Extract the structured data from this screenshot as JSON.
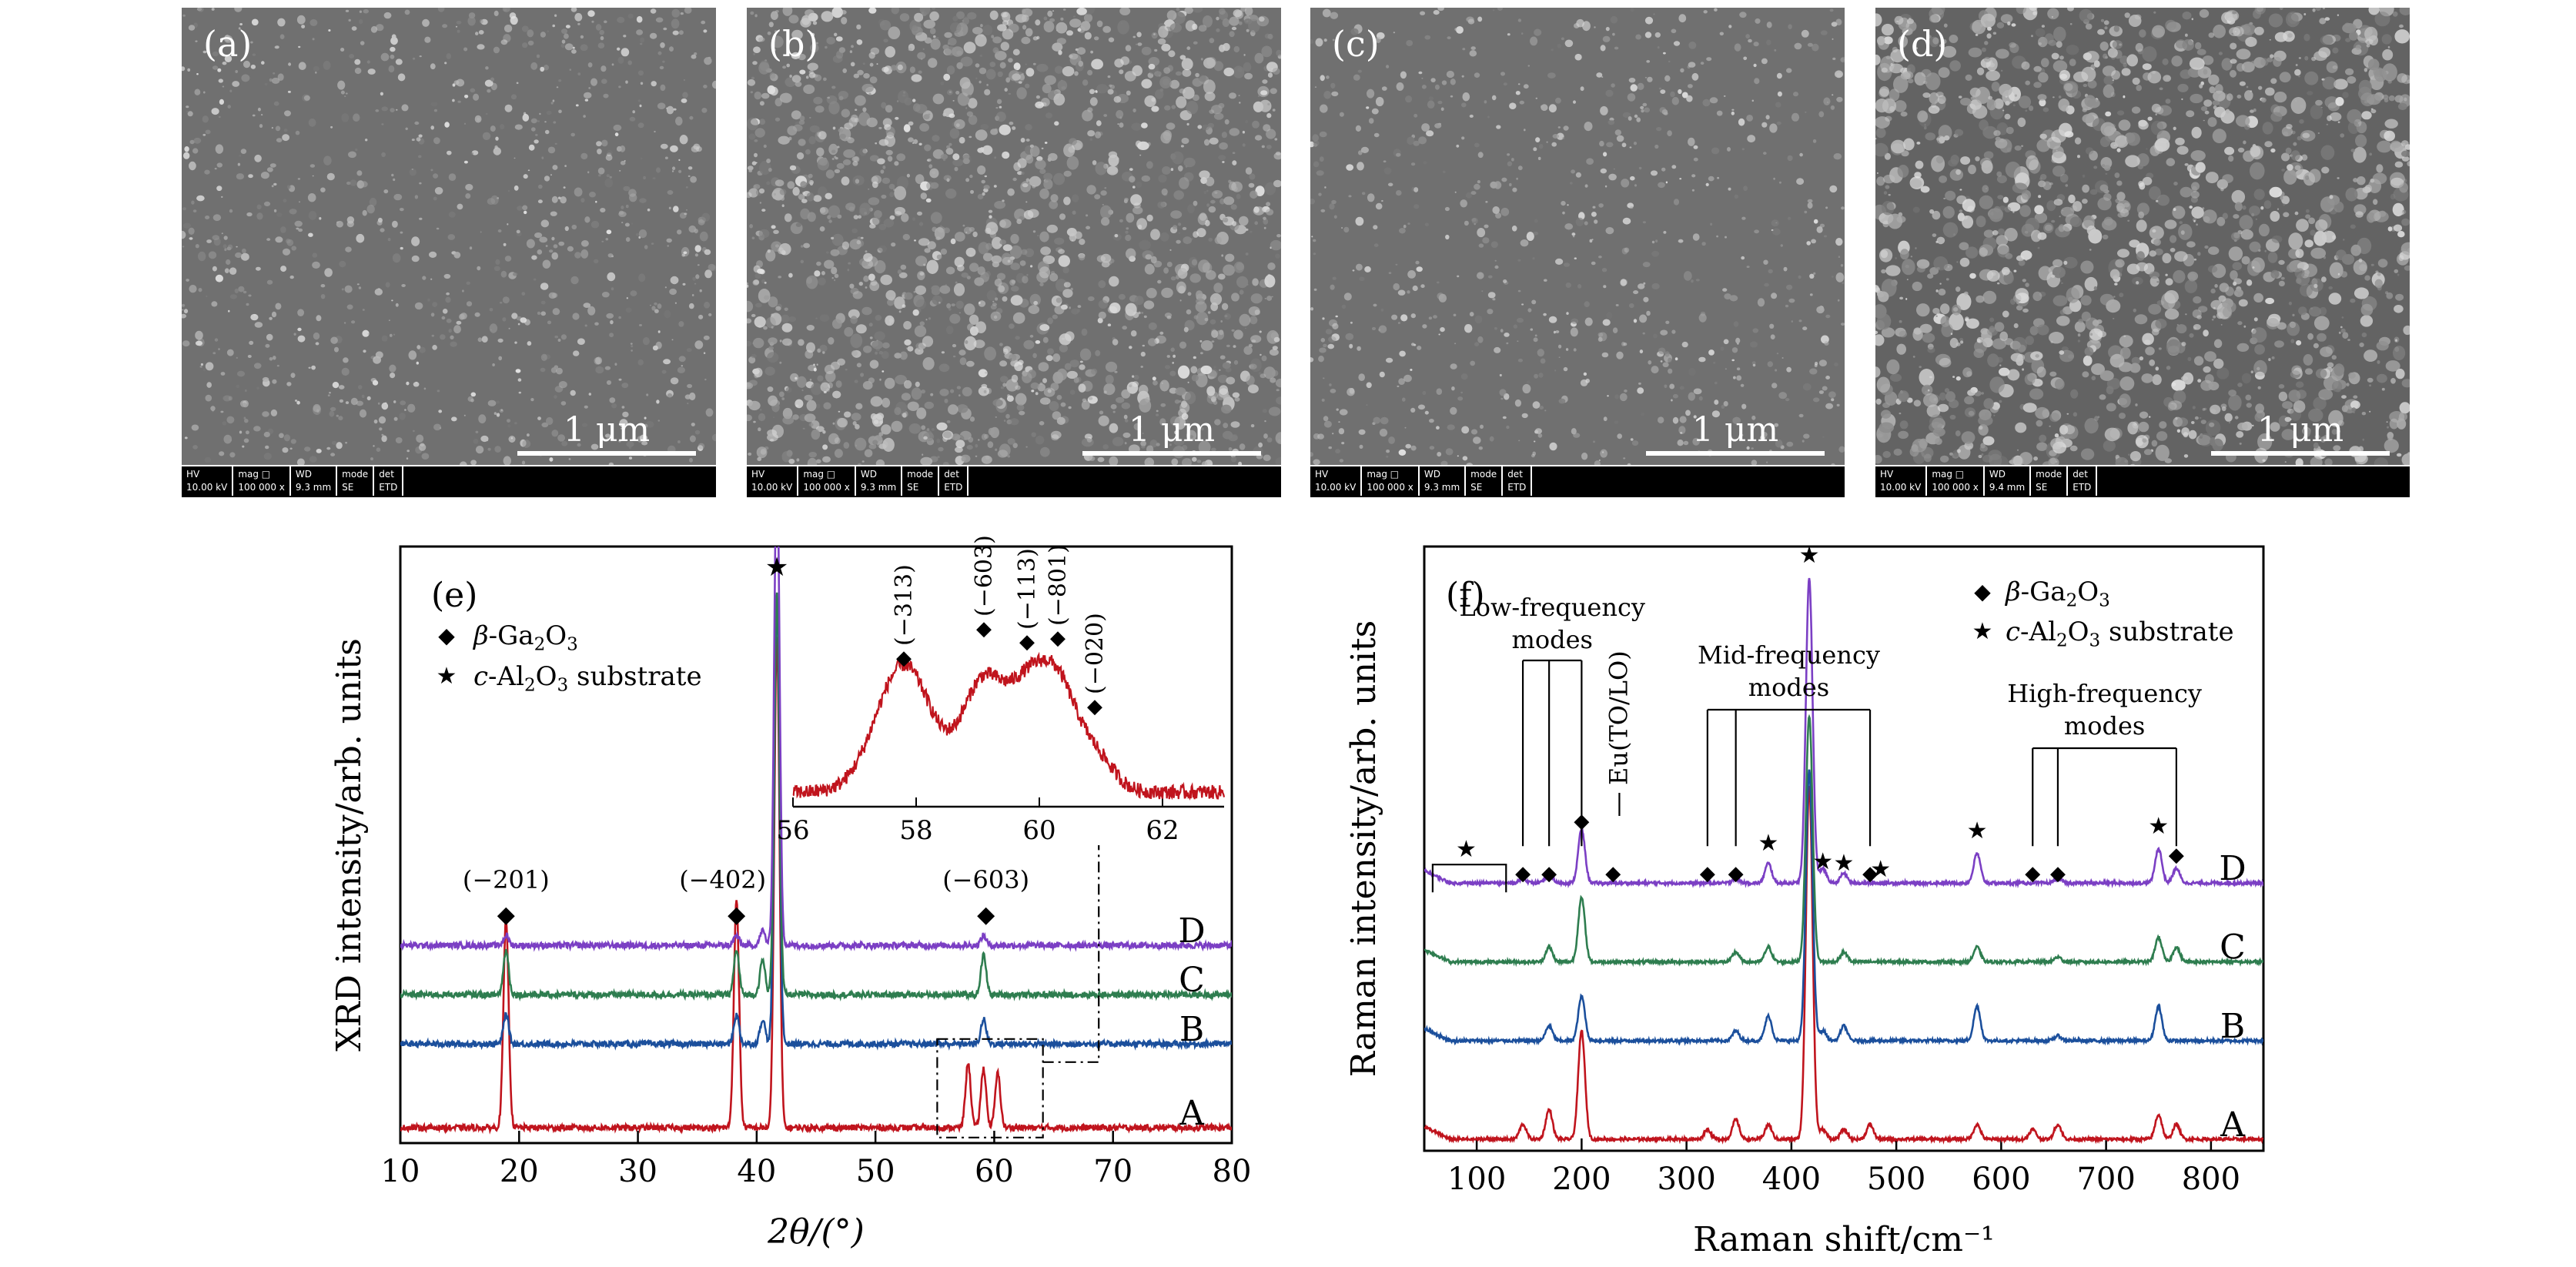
{
  "sem_panels": [
    {
      "label": "(a)",
      "scale_bar": "1 μm",
      "info": {
        "headers": [
          "HV",
          "mag □",
          "WD",
          "mode",
          "det"
        ],
        "values": [
          "10.00 kV",
          "100 000 x",
          "9.3 mm",
          "SE",
          "ETD"
        ]
      }
    },
    {
      "label": "(b)",
      "scale_bar": "1 μm",
      "info": {
        "headers": [
          "HV",
          "mag □",
          "WD",
          "mode",
          "det"
        ],
        "values": [
          "10.00 kV",
          "100 000 x",
          "9.3 mm",
          "SE",
          "ETD"
        ]
      }
    },
    {
      "label": "(c)",
      "scale_bar": "1 μm",
      "info": {
        "headers": [
          "HV",
          "mag □",
          "WD",
          "mode",
          "det"
        ],
        "values": [
          "10.00 kV",
          "100 000 x",
          "9.3 mm",
          "SE",
          "ETD"
        ]
      }
    },
    {
      "label": "(d)",
      "scale_bar": "1 μm",
      "info": {
        "headers": [
          "HV",
          "mag □",
          "WD",
          "mode",
          "det"
        ],
        "values": [
          "10.00 kV",
          "100 000 x",
          "9.4 mm",
          "SE",
          "ETD"
        ]
      }
    }
  ],
  "chart_data": [
    {
      "type": "line",
      "panel_label": "(e)",
      "xlabel": "2θ/(°)",
      "ylabel": "XRD intensity/arb. units",
      "xlim": [
        10,
        80
      ],
      "xticks": [
        10,
        20,
        30,
        40,
        50,
        60,
        70,
        80
      ],
      "legend": [
        {
          "marker": "◆",
          "text": "β-Ga2O3"
        },
        {
          "marker": "★",
          "text": "c-Al2O3 substrate"
        }
      ],
      "series": [
        {
          "name": "A",
          "color": "#c0141d",
          "baseline": 0.0,
          "peaks": [
            {
              "x": 18.9,
              "h": 0.42
            },
            {
              "x": 38.3,
              "h": 0.46
            },
            {
              "x": 41.7,
              "h": 1.0
            },
            {
              "x": 57.8,
              "h": 0.13
            },
            {
              "x": 59.1,
              "h": 0.12
            },
            {
              "x": 60.3,
              "h": 0.11
            }
          ]
        },
        {
          "name": "B",
          "color": "#1b4f9c",
          "baseline": 0.17,
          "peaks": [
            {
              "x": 18.9,
              "h": 0.06
            },
            {
              "x": 38.3,
              "h": 0.06
            },
            {
              "x": 40.5,
              "h": 0.05
            },
            {
              "x": 41.7,
              "h": 0.9
            },
            {
              "x": 59.1,
              "h": 0.05
            }
          ]
        },
        {
          "name": "C",
          "color": "#2e7d4f",
          "baseline": 0.27,
          "peaks": [
            {
              "x": 18.9,
              "h": 0.09
            },
            {
              "x": 38.3,
              "h": 0.09
            },
            {
              "x": 40.5,
              "h": 0.07
            },
            {
              "x": 41.7,
              "h": 0.82
            },
            {
              "x": 59.1,
              "h": 0.08
            }
          ]
        },
        {
          "name": "D",
          "color": "#7b3fc4",
          "baseline": 0.37,
          "peaks": [
            {
              "x": 18.9,
              "h": 0.02
            },
            {
              "x": 38.3,
              "h": 0.02
            },
            {
              "x": 40.5,
              "h": 0.03
            },
            {
              "x": 41.7,
              "h": 1.0
            },
            {
              "x": 59.1,
              "h": 0.02
            }
          ]
        }
      ],
      "annotations": [
        {
          "marker": "◆",
          "text": "(−201)",
          "x": 18.9
        },
        {
          "marker": "◆",
          "text": "(−402)",
          "x": 38.3
        },
        {
          "marker": "◆",
          "text": "(−603)",
          "x": 59.3
        },
        {
          "marker": "★",
          "text": "",
          "x": 41.7
        }
      ],
      "inset": {
        "xlim": [
          56,
          63
        ],
        "xticks": [
          56,
          58,
          60,
          62
        ],
        "peaks": [
          {
            "label": "(−313)",
            "x": 57.8
          },
          {
            "label": "(−603)",
            "x": 59.1
          },
          {
            "label": "(−113)",
            "x": 59.8
          },
          {
            "label": "(−801)",
            "x": 60.3
          },
          {
            "label": "(−020)",
            "x": 60.9
          }
        ]
      }
    },
    {
      "type": "line",
      "panel_label": "(f)",
      "xlabel": "Raman shift/cm⁻¹",
      "ylabel": "Raman intensity/arb. units",
      "xlim": [
        50,
        850
      ],
      "xticks": [
        100,
        200,
        300,
        400,
        500,
        600,
        700,
        800
      ],
      "legend": [
        {
          "marker": "◆",
          "text": "β-Ga2O3"
        },
        {
          "marker": "★",
          "text": "c-Al2O3 substrate"
        }
      ],
      "mode_groups": [
        {
          "label_lines": [
            "Low-frequency",
            "modes"
          ],
          "xs": [
            144,
            169,
            200
          ]
        },
        {
          "label_lines": [
            "Mid-frequency",
            "modes"
          ],
          "xs": [
            320,
            347,
            475
          ]
        },
        {
          "label_lines": [
            "High-frequency",
            "modes"
          ],
          "xs": [
            630,
            654,
            767
          ]
        }
      ],
      "eu_label": "Eu(TO/LO)",
      "series": [
        {
          "name": "A",
          "color": "#c0141d",
          "baseline": 0.0,
          "peaks": [
            {
              "x": 144,
              "h": 0.03
            },
            {
              "x": 169,
              "h": 0.06
            },
            {
              "x": 200,
              "h": 0.22
            },
            {
              "x": 320,
              "h": 0.02
            },
            {
              "x": 347,
              "h": 0.04
            },
            {
              "x": 378,
              "h": 0.03
            },
            {
              "x": 417,
              "h": 0.72
            },
            {
              "x": 430,
              "h": 0.02
            },
            {
              "x": 450,
              "h": 0.02
            },
            {
              "x": 475,
              "h": 0.03
            },
            {
              "x": 577,
              "h": 0.03
            },
            {
              "x": 630,
              "h": 0.02
            },
            {
              "x": 654,
              "h": 0.03
            },
            {
              "x": 750,
              "h": 0.05
            },
            {
              "x": 767,
              "h": 0.03
            }
          ]
        },
        {
          "name": "B",
          "color": "#1b4f9c",
          "baseline": 0.2,
          "peaks": [
            {
              "x": 169,
              "h": 0.03
            },
            {
              "x": 200,
              "h": 0.09
            },
            {
              "x": 347,
              "h": 0.02
            },
            {
              "x": 378,
              "h": 0.05
            },
            {
              "x": 417,
              "h": 0.55
            },
            {
              "x": 430,
              "h": 0.02
            },
            {
              "x": 450,
              "h": 0.03
            },
            {
              "x": 577,
              "h": 0.07
            },
            {
              "x": 654,
              "h": 0.01
            },
            {
              "x": 750,
              "h": 0.07
            }
          ]
        },
        {
          "name": "C",
          "color": "#2e7d4f",
          "baseline": 0.36,
          "peaks": [
            {
              "x": 169,
              "h": 0.03
            },
            {
              "x": 200,
              "h": 0.13
            },
            {
              "x": 347,
              "h": 0.02
            },
            {
              "x": 378,
              "h": 0.03
            },
            {
              "x": 417,
              "h": 0.5
            },
            {
              "x": 450,
              "h": 0.02
            },
            {
              "x": 577,
              "h": 0.03
            },
            {
              "x": 654,
              "h": 0.01
            },
            {
              "x": 750,
              "h": 0.05
            },
            {
              "x": 767,
              "h": 0.03
            }
          ]
        },
        {
          "name": "D",
          "color": "#7b3fc4",
          "baseline": 0.52,
          "peaks": [
            {
              "x": 144,
              "h": 0.01
            },
            {
              "x": 169,
              "h": 0.02
            },
            {
              "x": 200,
              "h": 0.11
            },
            {
              "x": 347,
              "h": 0.01
            },
            {
              "x": 378,
              "h": 0.04
            },
            {
              "x": 417,
              "h": 0.62
            },
            {
              "x": 430,
              "h": 0.03
            },
            {
              "x": 450,
              "h": 0.02
            },
            {
              "x": 577,
              "h": 0.06
            },
            {
              "x": 654,
              "h": 0.01
            },
            {
              "x": 750,
              "h": 0.07
            },
            {
              "x": 767,
              "h": 0.03
            }
          ]
        }
      ],
      "d_markers": [
        {
          "marker": "★",
          "x": 90
        },
        {
          "marker": "◆",
          "x": 144
        },
        {
          "marker": "◆",
          "x": 169
        },
        {
          "marker": "◆",
          "x": 200
        },
        {
          "marker": "◆",
          "x": 230
        },
        {
          "marker": "◆",
          "x": 320
        },
        {
          "marker": "◆",
          "x": 347
        },
        {
          "marker": "★",
          "x": 378
        },
        {
          "marker": "★",
          "x": 417
        },
        {
          "marker": "★",
          "x": 430
        },
        {
          "marker": "★",
          "x": 450
        },
        {
          "marker": "◆",
          "x": 475
        },
        {
          "marker": "★",
          "x": 485
        },
        {
          "marker": "★",
          "x": 577
        },
        {
          "marker": "◆",
          "x": 630
        },
        {
          "marker": "◆",
          "x": 654
        },
        {
          "marker": "★",
          "x": 750
        },
        {
          "marker": "◆",
          "x": 767
        }
      ]
    }
  ]
}
